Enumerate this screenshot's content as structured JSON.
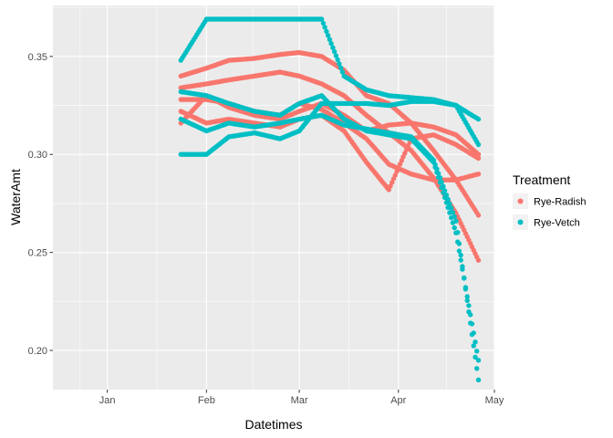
{
  "chart_data": {
    "type": "scatter",
    "xlabel": "Datetimes",
    "ylabel": "WaterAmt",
    "x_ticks": [
      {
        "date": "2020-01-01",
        "label": "Jan"
      },
      {
        "date": "2020-02-01",
        "label": "Feb"
      },
      {
        "date": "2020-03-01",
        "label": "Mar"
      },
      {
        "date": "2020-04-01",
        "label": "Apr"
      },
      {
        "date": "2020-05-01",
        "label": "May"
      }
    ],
    "y_ticks": [
      0.2,
      0.25,
      0.3,
      0.35
    ],
    "y_tick_labels": [
      "0.20",
      "0.25",
      "0.30",
      "0.35"
    ],
    "xlim": [
      "2019-12-15",
      "2020-05-01"
    ],
    "ylim": [
      0.18,
      0.376
    ],
    "grid": true,
    "legend": {
      "title": "Treatment",
      "placement": "right",
      "entries": [
        "Rye-Radish",
        "Rye-Vetch"
      ]
    },
    "colors": {
      "Rye-Radish": "#F8766D",
      "Rye-Vetch": "#00BFC4",
      "panel": "#EBEBEB",
      "grid": "#FFFFFF"
    },
    "series": [
      {
        "name": "Rye-Radish",
        "tracks": [
          {
            "x": [
              "2020-01-24",
              "2020-02-01",
              "2020-02-08",
              "2020-02-16",
              "2020-02-24",
              "2020-03-01",
              "2020-03-08",
              "2020-03-15",
              "2020-03-22",
              "2020-03-29",
              "2020-04-05",
              "2020-04-12",
              "2020-04-19",
              "2020-04-26"
            ],
            "y": [
              0.34,
              0.344,
              0.348,
              0.349,
              0.351,
              0.352,
              0.35,
              0.343,
              0.33,
              0.326,
              0.316,
              0.302,
              0.287,
              0.269
            ]
          },
          {
            "x": [
              "2020-01-24",
              "2020-02-01",
              "2020-02-08",
              "2020-02-16",
              "2020-02-24",
              "2020-03-01",
              "2020-03-08",
              "2020-03-15",
              "2020-03-22",
              "2020-03-29",
              "2020-04-05",
              "2020-04-12",
              "2020-04-19",
              "2020-04-26"
            ],
            "y": [
              0.334,
              0.336,
              0.338,
              0.34,
              0.342,
              0.34,
              0.336,
              0.33,
              0.32,
              0.311,
              0.302,
              0.288,
              0.27,
              0.246
            ]
          },
          {
            "x": [
              "2020-01-24",
              "2020-02-01",
              "2020-02-08",
              "2020-02-16",
              "2020-02-24",
              "2020-03-01",
              "2020-03-08",
              "2020-03-15",
              "2020-03-22",
              "2020-03-29",
              "2020-04-05",
              "2020-04-12",
              "2020-04-19",
              "2020-04-26"
            ],
            "y": [
              0.328,
              0.328,
              0.326,
              0.322,
              0.32,
              0.326,
              0.323,
              0.316,
              0.308,
              0.295,
              0.29,
              0.287,
              0.287,
              0.29
            ]
          },
          {
            "x": [
              "2020-01-24",
              "2020-02-01",
              "2020-02-08",
              "2020-02-16",
              "2020-02-24",
              "2020-03-01",
              "2020-03-08",
              "2020-03-15",
              "2020-03-22",
              "2020-03-29",
              "2020-04-05",
              "2020-04-12",
              "2020-04-19",
              "2020-04-26"
            ],
            "y": [
              0.322,
              0.316,
              0.318,
              0.316,
              0.314,
              0.318,
              0.32,
              0.312,
              0.296,
              0.282,
              0.308,
              0.31,
              0.305,
              0.298
            ]
          },
          {
            "x": [
              "2020-01-24",
              "2020-02-01",
              "2020-02-08",
              "2020-02-16",
              "2020-02-24",
              "2020-03-01",
              "2020-03-08",
              "2020-03-15",
              "2020-03-22",
              "2020-03-29",
              "2020-04-05",
              "2020-04-12",
              "2020-04-19",
              "2020-04-26"
            ],
            "y": [
              0.316,
              0.33,
              0.324,
              0.32,
              0.318,
              0.322,
              0.326,
              0.32,
              0.312,
              0.315,
              0.316,
              0.314,
              0.31,
              0.3
            ]
          }
        ]
      },
      {
        "name": "Rye-Vetch",
        "tracks": [
          {
            "x": [
              "2020-01-24",
              "2020-02-01",
              "2020-02-08",
              "2020-02-16",
              "2020-02-24",
              "2020-03-01",
              "2020-03-08",
              "2020-03-15",
              "2020-03-22",
              "2020-03-29",
              "2020-04-05",
              "2020-04-12",
              "2020-04-19",
              "2020-04-26"
            ],
            "y": [
              0.348,
              0.369,
              0.369,
              0.369,
              0.369,
              0.369,
              0.369,
              0.34,
              0.333,
              0.33,
              0.329,
              0.328,
              0.325,
              0.305
            ]
          },
          {
            "x": [
              "2020-01-24",
              "2020-02-01",
              "2020-02-08",
              "2020-02-16",
              "2020-02-24",
              "2020-03-01",
              "2020-03-08",
              "2020-03-15",
              "2020-03-22",
              "2020-03-29",
              "2020-04-05",
              "2020-04-12",
              "2020-04-19",
              "2020-04-26"
            ],
            "y": [
              0.332,
              0.33,
              0.326,
              0.322,
              0.32,
              0.326,
              0.33,
              0.318,
              0.312,
              0.31,
              0.308,
              0.296,
              0.26,
              0.195
            ]
          },
          {
            "x": [
              "2020-01-24",
              "2020-02-01",
              "2020-02-08",
              "2020-02-16",
              "2020-02-24",
              "2020-03-01",
              "2020-03-08",
              "2020-03-15",
              "2020-03-22",
              "2020-03-29",
              "2020-04-05",
              "2020-04-12",
              "2020-04-19",
              "2020-04-26"
            ],
            "y": [
              0.318,
              0.312,
              0.316,
              0.314,
              0.316,
              0.318,
              0.32,
              0.315,
              0.313,
              0.311,
              0.309,
              0.297,
              0.266,
              0.185
            ]
          },
          {
            "x": [
              "2020-01-24",
              "2020-02-01",
              "2020-02-08",
              "2020-02-16",
              "2020-02-24",
              "2020-03-01",
              "2020-03-08",
              "2020-03-15",
              "2020-03-22",
              "2020-03-29",
              "2020-04-05",
              "2020-04-12",
              "2020-04-19",
              "2020-04-26"
            ],
            "y": [
              0.3,
              0.3,
              0.309,
              0.311,
              0.308,
              0.312,
              0.326,
              0.326,
              0.326,
              0.325,
              0.327,
              0.327,
              0.325,
              0.318
            ]
          }
        ]
      }
    ]
  }
}
